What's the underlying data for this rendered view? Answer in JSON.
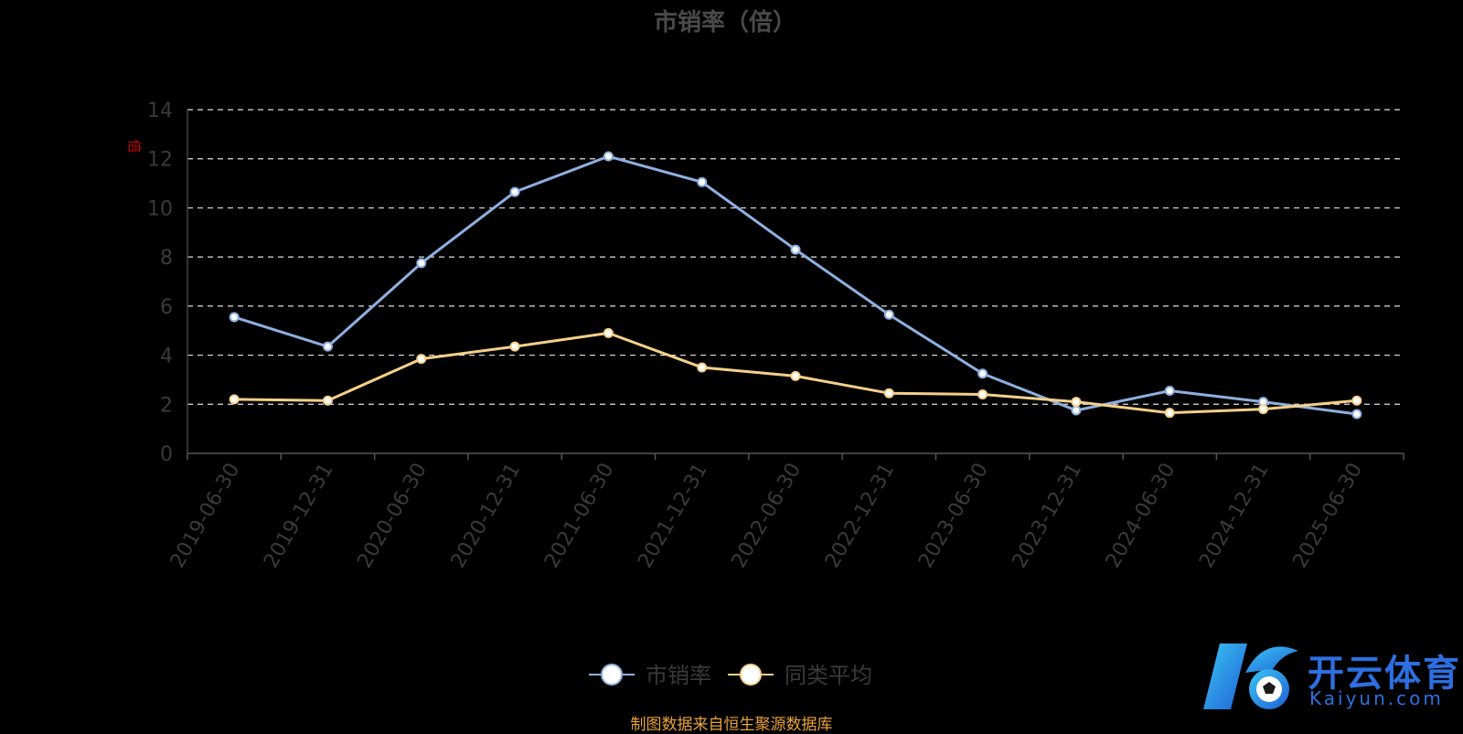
{
  "chart_data": {
    "type": "line",
    "title": "市销率（倍）",
    "ylabel": "倍",
    "ylim": [
      0,
      14
    ],
    "yticks": [
      0,
      2,
      4,
      6,
      8,
      10,
      12,
      14
    ],
    "grid": true,
    "legend_position": "bottom-center",
    "categories": [
      "2019-06-30",
      "2019-12-31",
      "2020-06-30",
      "2020-12-31",
      "2021-06-30",
      "2021-12-31",
      "2022-06-30",
      "2022-12-31",
      "2023-06-30",
      "2023-12-31",
      "2024-06-30",
      "2024-12-31",
      "2025-06-30"
    ],
    "series": [
      {
        "name": "市销率",
        "color": "#8fb0e0",
        "values": [
          5.55,
          4.35,
          7.75,
          10.65,
          12.1,
          11.05,
          8.3,
          5.65,
          3.25,
          1.75,
          2.55,
          2.1,
          1.6
        ]
      },
      {
        "name": "同类平均",
        "color": "#f5d08a",
        "values": [
          2.2,
          2.15,
          3.85,
          4.35,
          4.9,
          3.5,
          3.15,
          2.45,
          2.4,
          2.1,
          1.65,
          1.8,
          2.15
        ]
      }
    ]
  },
  "source_text": "制图数据来自恒生聚源数据库",
  "logo": {
    "name": "开云体育",
    "sub": "Kaiyun.com"
  }
}
